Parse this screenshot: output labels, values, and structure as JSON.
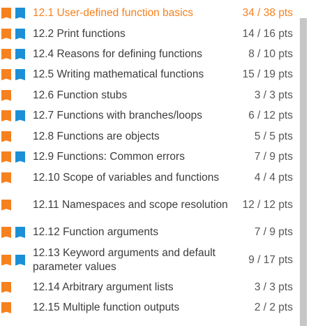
{
  "colors": {
    "participation": "#f5811f",
    "challenge": "#1c8fd6",
    "active": "#f5811f",
    "text": "#3c3c3c",
    "scrollbar": "#c6c6c6"
  },
  "sections": [
    {
      "title": "12.1 User-defined function basics",
      "points": "34 / 38 pts",
      "icons": [
        "participation-icon",
        "challenge-icon"
      ],
      "active": true
    },
    {
      "title": "12.2 Print functions",
      "points": "14 / 16 pts",
      "icons": [
        "participation-icon",
        "challenge-icon"
      ]
    },
    {
      "title": "12.4 Reasons for defining functions",
      "points": "8 / 10 pts",
      "icons": [
        "participation-icon",
        "challenge-icon"
      ]
    },
    {
      "title": "12.5 Writing mathematical functions",
      "points": "15 / 19 pts",
      "icons": [
        "participation-icon",
        "challenge-icon"
      ]
    },
    {
      "title": "12.6 Function stubs",
      "points": "3 / 3 pts",
      "icons": [
        "participation-icon"
      ]
    },
    {
      "title": "12.7 Functions with branches/loops",
      "points": "6 / 12 pts",
      "icons": [
        "participation-icon",
        "challenge-icon"
      ]
    },
    {
      "title": "12.8 Functions are objects",
      "points": "5 / 5 pts",
      "icons": [
        "participation-icon"
      ]
    },
    {
      "title": "12.9 Functions: Common errors",
      "points": "7 / 9 pts",
      "icons": [
        "participation-icon",
        "challenge-icon"
      ]
    },
    {
      "title": "12.10 Scope of variables and functions",
      "points": "4 / 4 pts",
      "icons": [
        "participation-icon"
      ]
    },
    {
      "title": "12.11 Namespaces and scope resolution",
      "points": "12 / 12 pts",
      "icons": [
        "participation-icon"
      ]
    },
    {
      "title": "12.12 Function arguments",
      "points": "7 / 9 pts",
      "icons": [
        "participation-icon",
        "challenge-icon"
      ]
    },
    {
      "title": "12.13 Keyword arguments and default parameter values",
      "points": "9 / 17 pts",
      "icons": [
        "participation-icon",
        "challenge-icon"
      ]
    },
    {
      "title": "12.14 Arbitrary argument lists",
      "points": "3 / 3 pts",
      "icons": [
        "participation-icon"
      ]
    },
    {
      "title": "12.15 Multiple function outputs",
      "points": "2 / 2 pts",
      "icons": [
        "participation-icon"
      ]
    }
  ]
}
